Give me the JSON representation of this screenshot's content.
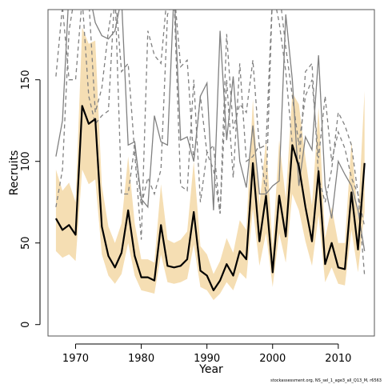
{
  "chart_data": {
    "type": "line",
    "xlabel": "Year",
    "ylabel": "Recruits",
    "footnote": "stockassessment.org, NS_sel_1_age3_all_Q13_M, r6563",
    "xlim": [
      1965.8,
      2015.5
    ],
    "ylim": [
      -7,
      193
    ],
    "x_ticks": [
      1970,
      1980,
      1990,
      2000,
      2010
    ],
    "y_ticks": [
      0,
      50,
      100,
      150
    ],
    "grid": false,
    "colors": {
      "band": "#f5deb3",
      "estimate": "#000000",
      "comparison": "#808080"
    },
    "x": [
      1967,
      1968,
      1969,
      1970,
      1971,
      1972,
      1973,
      1974,
      1975,
      1976,
      1977,
      1978,
      1979,
      1980,
      1981,
      1982,
      1983,
      1984,
      1985,
      1986,
      1987,
      1988,
      1989,
      1990,
      1991,
      1992,
      1993,
      1994,
      1995,
      1996,
      1997,
      1998,
      1999,
      2000,
      2001,
      2002,
      2003,
      2004,
      2005,
      2006,
      2007,
      2008,
      2009,
      2010,
      2011,
      2012,
      2013,
      2014
    ],
    "series": [
      {
        "role": "estimate",
        "values": [
          65,
          58,
          61,
          55,
          134,
          123,
          126,
          60,
          42,
          35,
          44,
          70,
          42,
          29,
          29,
          27,
          61,
          36,
          35,
          36,
          40,
          69,
          33,
          30,
          21,
          27,
          37,
          30,
          45,
          40,
          99,
          51,
          79,
          32,
          79,
          54,
          110,
          97,
          72,
          51,
          94,
          37,
          50,
          35,
          34,
          81,
          46,
          99
        ]
      },
      {
        "role": "band_upper",
        "values": [
          95,
          82,
          87,
          75,
          182,
          172,
          174,
          85,
          60,
          50,
          62,
          103,
          62,
          40,
          40,
          38,
          86,
          52,
          50,
          52,
          57,
          100,
          48,
          43,
          31,
          39,
          53,
          44,
          64,
          58,
          138,
          73,
          113,
          47,
          113,
          77,
          142,
          135,
          102,
          73,
          133,
          53,
          72,
          50,
          50,
          112,
          65,
          143
        ]
      },
      {
        "role": "band_lower",
        "values": [
          45,
          41,
          43,
          39,
          95,
          86,
          89,
          43,
          30,
          25,
          31,
          50,
          30,
          21,
          20,
          19,
          43,
          26,
          25,
          26,
          28,
          49,
          23,
          21,
          15,
          19,
          26,
          21,
          32,
          28,
          71,
          36,
          56,
          23,
          56,
          38,
          80,
          70,
          51,
          36,
          67,
          26,
          35,
          25,
          24,
          58,
          32,
          69
        ]
      },
      {
        "role": "comparison",
        "style": "solid",
        "values": [
          103,
          125,
          205,
          205,
          205,
          205,
          185,
          177,
          175,
          180,
          200,
          110,
          112,
          77,
          72,
          128,
          112,
          110,
          205,
          113,
          115,
          100,
          140,
          148,
          70,
          180,
          113,
          152,
          100,
          84,
          122,
          80,
          80,
          85,
          88,
          190,
          150,
          85,
          115,
          107,
          165,
          85,
          65,
          100,
          92,
          85,
          70,
          45
        ]
      },
      {
        "role": "comparison",
        "style": "dashed",
        "values": [
          152,
          195,
          150,
          150,
          200,
          140,
          123,
          128,
          131,
          205,
          80,
          80,
          110,
          73,
          90,
          80,
          95,
          190,
          200,
          85,
          82,
          150,
          75,
          105,
          110,
          68,
          150,
          90,
          160,
          100,
          103,
          110,
          80,
          205,
          185,
          155,
          110,
          95,
          155,
          160,
          90,
          75,
          95,
          130,
          122,
          110,
          80,
          30
        ]
      },
      {
        "role": "comparison",
        "style": "dashed",
        "values": [
          72,
          95,
          180,
          205,
          205,
          200,
          130,
          145,
          180,
          205,
          155,
          160,
          105,
          52,
          180,
          165,
          160,
          205,
          205,
          158,
          162,
          100,
          140,
          105,
          95,
          68,
          178,
          120,
          135,
          130,
          162,
          108,
          110,
          205,
          205,
          170,
          140,
          110,
          140,
          150,
          102,
          140,
          100,
          118,
          108,
          90,
          80,
          60
        ]
      }
    ]
  }
}
